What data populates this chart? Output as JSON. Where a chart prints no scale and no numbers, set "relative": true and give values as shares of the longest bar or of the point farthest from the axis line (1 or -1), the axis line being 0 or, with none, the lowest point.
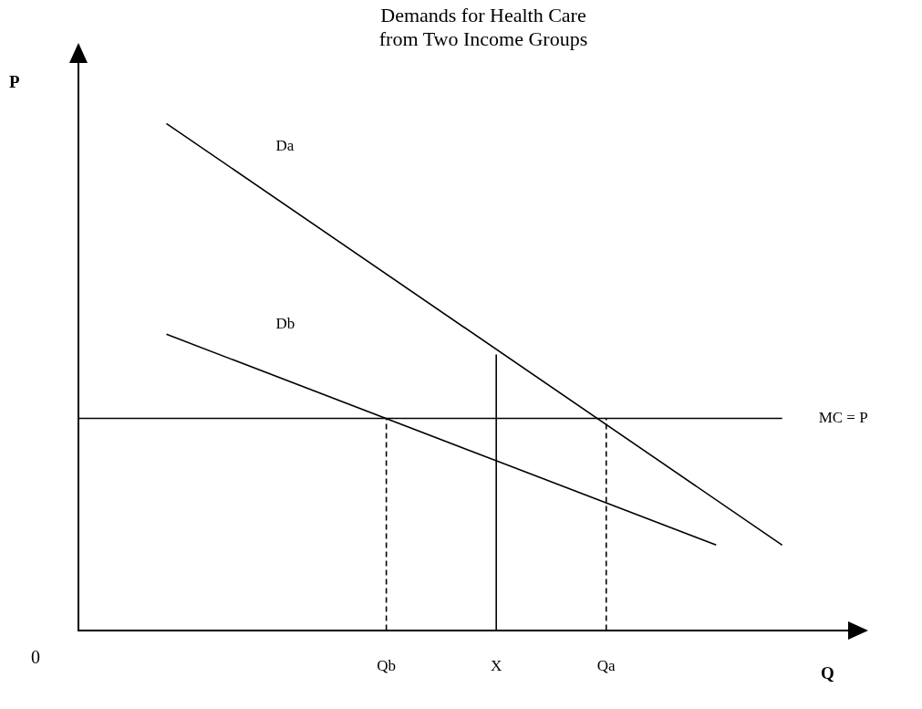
{
  "chart_data": {
    "type": "line",
    "title": "Demands for Health Care\nfrom Two Income Groups",
    "xlabel": "Q",
    "ylabel": "P",
    "relative": true,
    "categories": [
      null,
      null,
      null,
      null,
      null,
      null,
      null,
      null,
      null,
      null,
      null,
      null,
      null,
      null,
      "Qb",
      null,
      null,
      null,
      null,
      "X",
      null,
      null,
      null,
      null,
      "Qa",
      null,
      null,
      null,
      null,
      null,
      null,
      null,
      null,
      null,
      null,
      null
    ],
    "series": [
      {
        "name": "Da",
        "color": "#000000",
        "values": [
          null,
          null,
          null,
          null,
          1,
          null,
          null,
          null,
          null,
          null,
          null,
          null,
          null,
          null,
          null,
          null,
          null,
          null,
          null,
          null,
          null,
          null,
          null,
          null,
          null,
          null,
          null,
          null,
          null,
          null,
          null,
          null,
          0.168,
          null,
          null,
          null
        ]
      },
      {
        "name": "Db",
        "color": "#000000",
        "values": [
          null,
          null,
          null,
          null,
          0.584,
          null,
          null,
          null,
          null,
          null,
          null,
          null,
          null,
          null,
          null,
          null,
          null,
          null,
          null,
          null,
          null,
          null,
          null,
          null,
          null,
          null,
          null,
          null,
          null,
          0.168,
          null,
          null,
          null,
          null,
          null,
          null
        ]
      },
      {
        "name": "MC = P",
        "color": "#000000",
        "values": [
          0.418,
          null,
          null,
          null,
          null,
          null,
          null,
          null,
          null,
          null,
          null,
          null,
          null,
          null,
          null,
          null,
          null,
          null,
          null,
          null,
          null,
          null,
          null,
          null,
          null,
          null,
          null,
          null,
          null,
          null,
          null,
          null,
          0.418,
          null,
          null,
          null
        ]
      },
      {
        "color": "#000000",
        "x": [
          "X",
          "X"
        ],
        "values": [
          0,
          0.544
        ]
      },
      {
        "color": "#000000",
        "x": [
          "Qb",
          "Qb"
        ],
        "values": [
          0,
          0.418
        ],
        "line_style": "dashed"
      },
      {
        "color": "#000000",
        "x": [
          "Qa",
          "Qa"
        ],
        "values": [
          0,
          0.418
        ],
        "line_style": "dashed"
      }
    ],
    "annotations": [
      "0"
    ],
    "marker": "none",
    "grid": false,
    "legend": false
  }
}
